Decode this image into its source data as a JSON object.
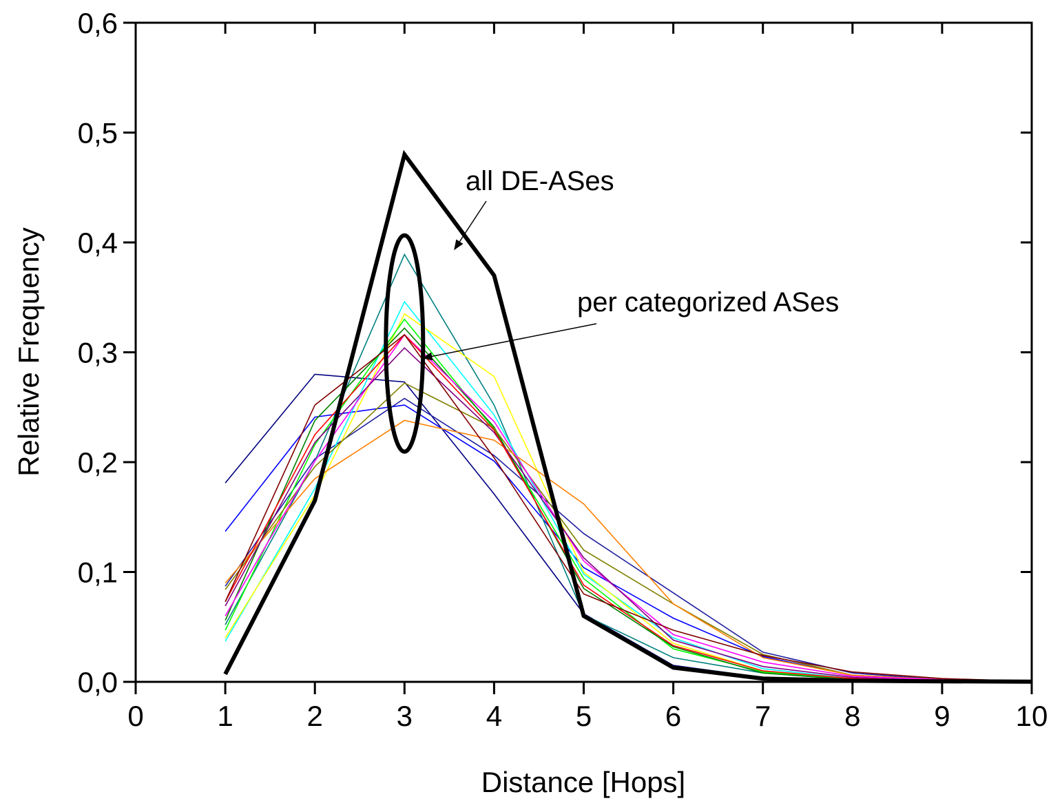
{
  "chart_data": {
    "type": "line",
    "title": "",
    "xlabel": "Distance [Hops]",
    "ylabel": "Relative Frequency",
    "xlim": [
      0,
      10
    ],
    "ylim": [
      0,
      0.6
    ],
    "x_ticks": [
      0,
      1,
      2,
      3,
      4,
      5,
      6,
      7,
      8,
      9,
      10
    ],
    "x_tick_labels": [
      "0",
      "1",
      "2",
      "3",
      "4",
      "5",
      "6",
      "7",
      "8",
      "9",
      "10"
    ],
    "y_ticks": [
      0,
      0.1,
      0.2,
      0.3,
      0.4,
      0.5,
      0.6
    ],
    "y_tick_labels": [
      "0,0",
      "0,1",
      "0,2",
      "0,3",
      "0,4",
      "0,5",
      "0,6"
    ],
    "grid": false,
    "legend": "none",
    "x": [
      1,
      2,
      3,
      4,
      5,
      6,
      7,
      8,
      9,
      10
    ],
    "series": [
      {
        "name": "all DE-ASes",
        "color": "#000000",
        "bold": true,
        "values": [
          0.007,
          0.165,
          0.48,
          0.37,
          0.06,
          0.013,
          0.003,
          0.001,
          0.0005,
          0.0002
        ]
      },
      {
        "color": "#000080",
        "values": [
          0.181,
          0.28,
          0.273,
          0.171,
          0.062,
          0.015,
          0.004,
          0.001,
          0.0005,
          0.0002
        ]
      },
      {
        "color": "#0000ff",
        "values": [
          0.137,
          0.241,
          0.252,
          0.201,
          0.104,
          0.058,
          0.023,
          0.006,
          0.002,
          0.0005
        ]
      },
      {
        "color": "#1f1f9f",
        "values": [
          0.087,
          0.203,
          0.258,
          0.206,
          0.135,
          0.081,
          0.027,
          0.008,
          0.002,
          0.0005
        ]
      },
      {
        "color": "#008080",
        "values": [
          0.052,
          0.201,
          0.389,
          0.252,
          0.061,
          0.022,
          0.008,
          0.002,
          0.001,
          0.0002
        ]
      },
      {
        "color": "#00ffff",
        "values": [
          0.037,
          0.176,
          0.346,
          0.243,
          0.098,
          0.04,
          0.012,
          0.003,
          0.001,
          0.0002
        ]
      },
      {
        "color": "#ffff00",
        "values": [
          0.04,
          0.17,
          0.335,
          0.278,
          0.1,
          0.035,
          0.01,
          0.003,
          0.001,
          0.0002
        ]
      },
      {
        "color": "#00ff00",
        "values": [
          0.047,
          0.216,
          0.33,
          0.23,
          0.094,
          0.03,
          0.009,
          0.002,
          0.001,
          0.0002
        ]
      },
      {
        "color": "#008000",
        "values": [
          0.056,
          0.238,
          0.322,
          0.232,
          0.085,
          0.032,
          0.008,
          0.002,
          0.001,
          0.0002
        ]
      },
      {
        "color": "#808000",
        "values": [
          0.084,
          0.196,
          0.272,
          0.231,
          0.12,
          0.071,
          0.025,
          0.006,
          0.002,
          0.0005
        ]
      },
      {
        "color": "#ff8000",
        "values": [
          0.09,
          0.185,
          0.238,
          0.22,
          0.162,
          0.071,
          0.022,
          0.006,
          0.002,
          0.0005
        ]
      },
      {
        "color": "#ff00ff",
        "values": [
          0.06,
          0.201,
          0.316,
          0.237,
          0.11,
          0.043,
          0.018,
          0.005,
          0.002,
          0.0005
        ]
      },
      {
        "color": "#800080",
        "values": [
          0.069,
          0.218,
          0.304,
          0.227,
          0.113,
          0.038,
          0.014,
          0.004,
          0.001,
          0.0002
        ]
      },
      {
        "color": "#ff0000",
        "values": [
          0.073,
          0.225,
          0.316,
          0.229,
          0.088,
          0.033,
          0.01,
          0.003,
          0.001,
          0.0002
        ]
      },
      {
        "color": "#800000",
        "values": [
          0.073,
          0.252,
          0.316,
          0.204,
          0.08,
          0.047,
          0.024,
          0.009,
          0.003,
          0.0005
        ]
      }
    ],
    "annotations": [
      {
        "text": "all DE-ASes"
      },
      {
        "text": "per categorized ASes"
      }
    ]
  }
}
